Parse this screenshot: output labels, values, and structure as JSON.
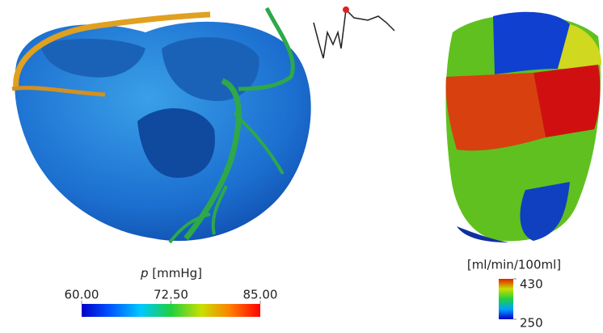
{
  "pressure_colorbar": {
    "variable": "p",
    "unit": "[mmHg]",
    "range": [
      60,
      85
    ],
    "ticks": [
      {
        "value": 60,
        "label": "60.00"
      },
      {
        "value": 72.5,
        "label": "72.50"
      },
      {
        "value": 85,
        "label": "85.00"
      }
    ]
  },
  "flow_colorbar": {
    "unit": "[ml/min/100ml]",
    "range": [
      250,
      430
    ],
    "ticks": [
      430,
      250
    ]
  }
}
